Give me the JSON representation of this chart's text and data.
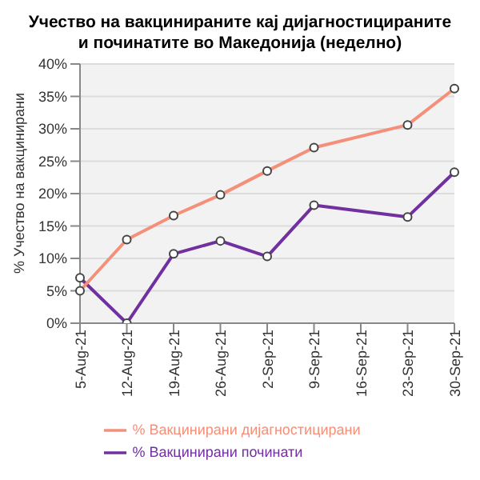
{
  "chart_data": {
    "type": "line",
    "title": "Учество на вакцинираните кај дијагностицираните и починатите во Македонија (неделно)",
    "ylabel": "% Учество на вакцинирани",
    "categories": [
      "5-Aug-21",
      "12-Aug-21",
      "19-Aug-21",
      "26-Aug-21",
      "2-Sep-21",
      "9-Sep-21",
      "16-Sep-21",
      "23-Sep-21",
      "30-Sep-21"
    ],
    "series": [
      {
        "name": "% Вакцинирани починати",
        "color": "#7030a0",
        "values": [
          7,
          0,
          10.7,
          12.7,
          10.3,
          18.2,
          null,
          16.4,
          23.3
        ]
      },
      {
        "name": "% Вакцинирани дијагностицирани",
        "color": "#f4907a",
        "values": [
          5,
          12.9,
          16.6,
          19.8,
          23.5,
          27.1,
          null,
          30.6,
          36.2
        ]
      }
    ],
    "ylim": [
      0,
      40
    ],
    "yticks": [
      {
        "value": 0,
        "label": "0%"
      },
      {
        "value": 5,
        "label": "5%"
      },
      {
        "value": 10,
        "label": "10%"
      },
      {
        "value": 15,
        "label": "15%"
      },
      {
        "value": 20,
        "label": "20%"
      },
      {
        "value": 25,
        "label": "25%"
      },
      {
        "value": 30,
        "label": "30%"
      },
      {
        "value": 35,
        "label": "35%"
      },
      {
        "value": 40,
        "label": "40%"
      }
    ],
    "grid": "y",
    "legend": "bottom",
    "marker": "circle",
    "line_style": "solid"
  }
}
